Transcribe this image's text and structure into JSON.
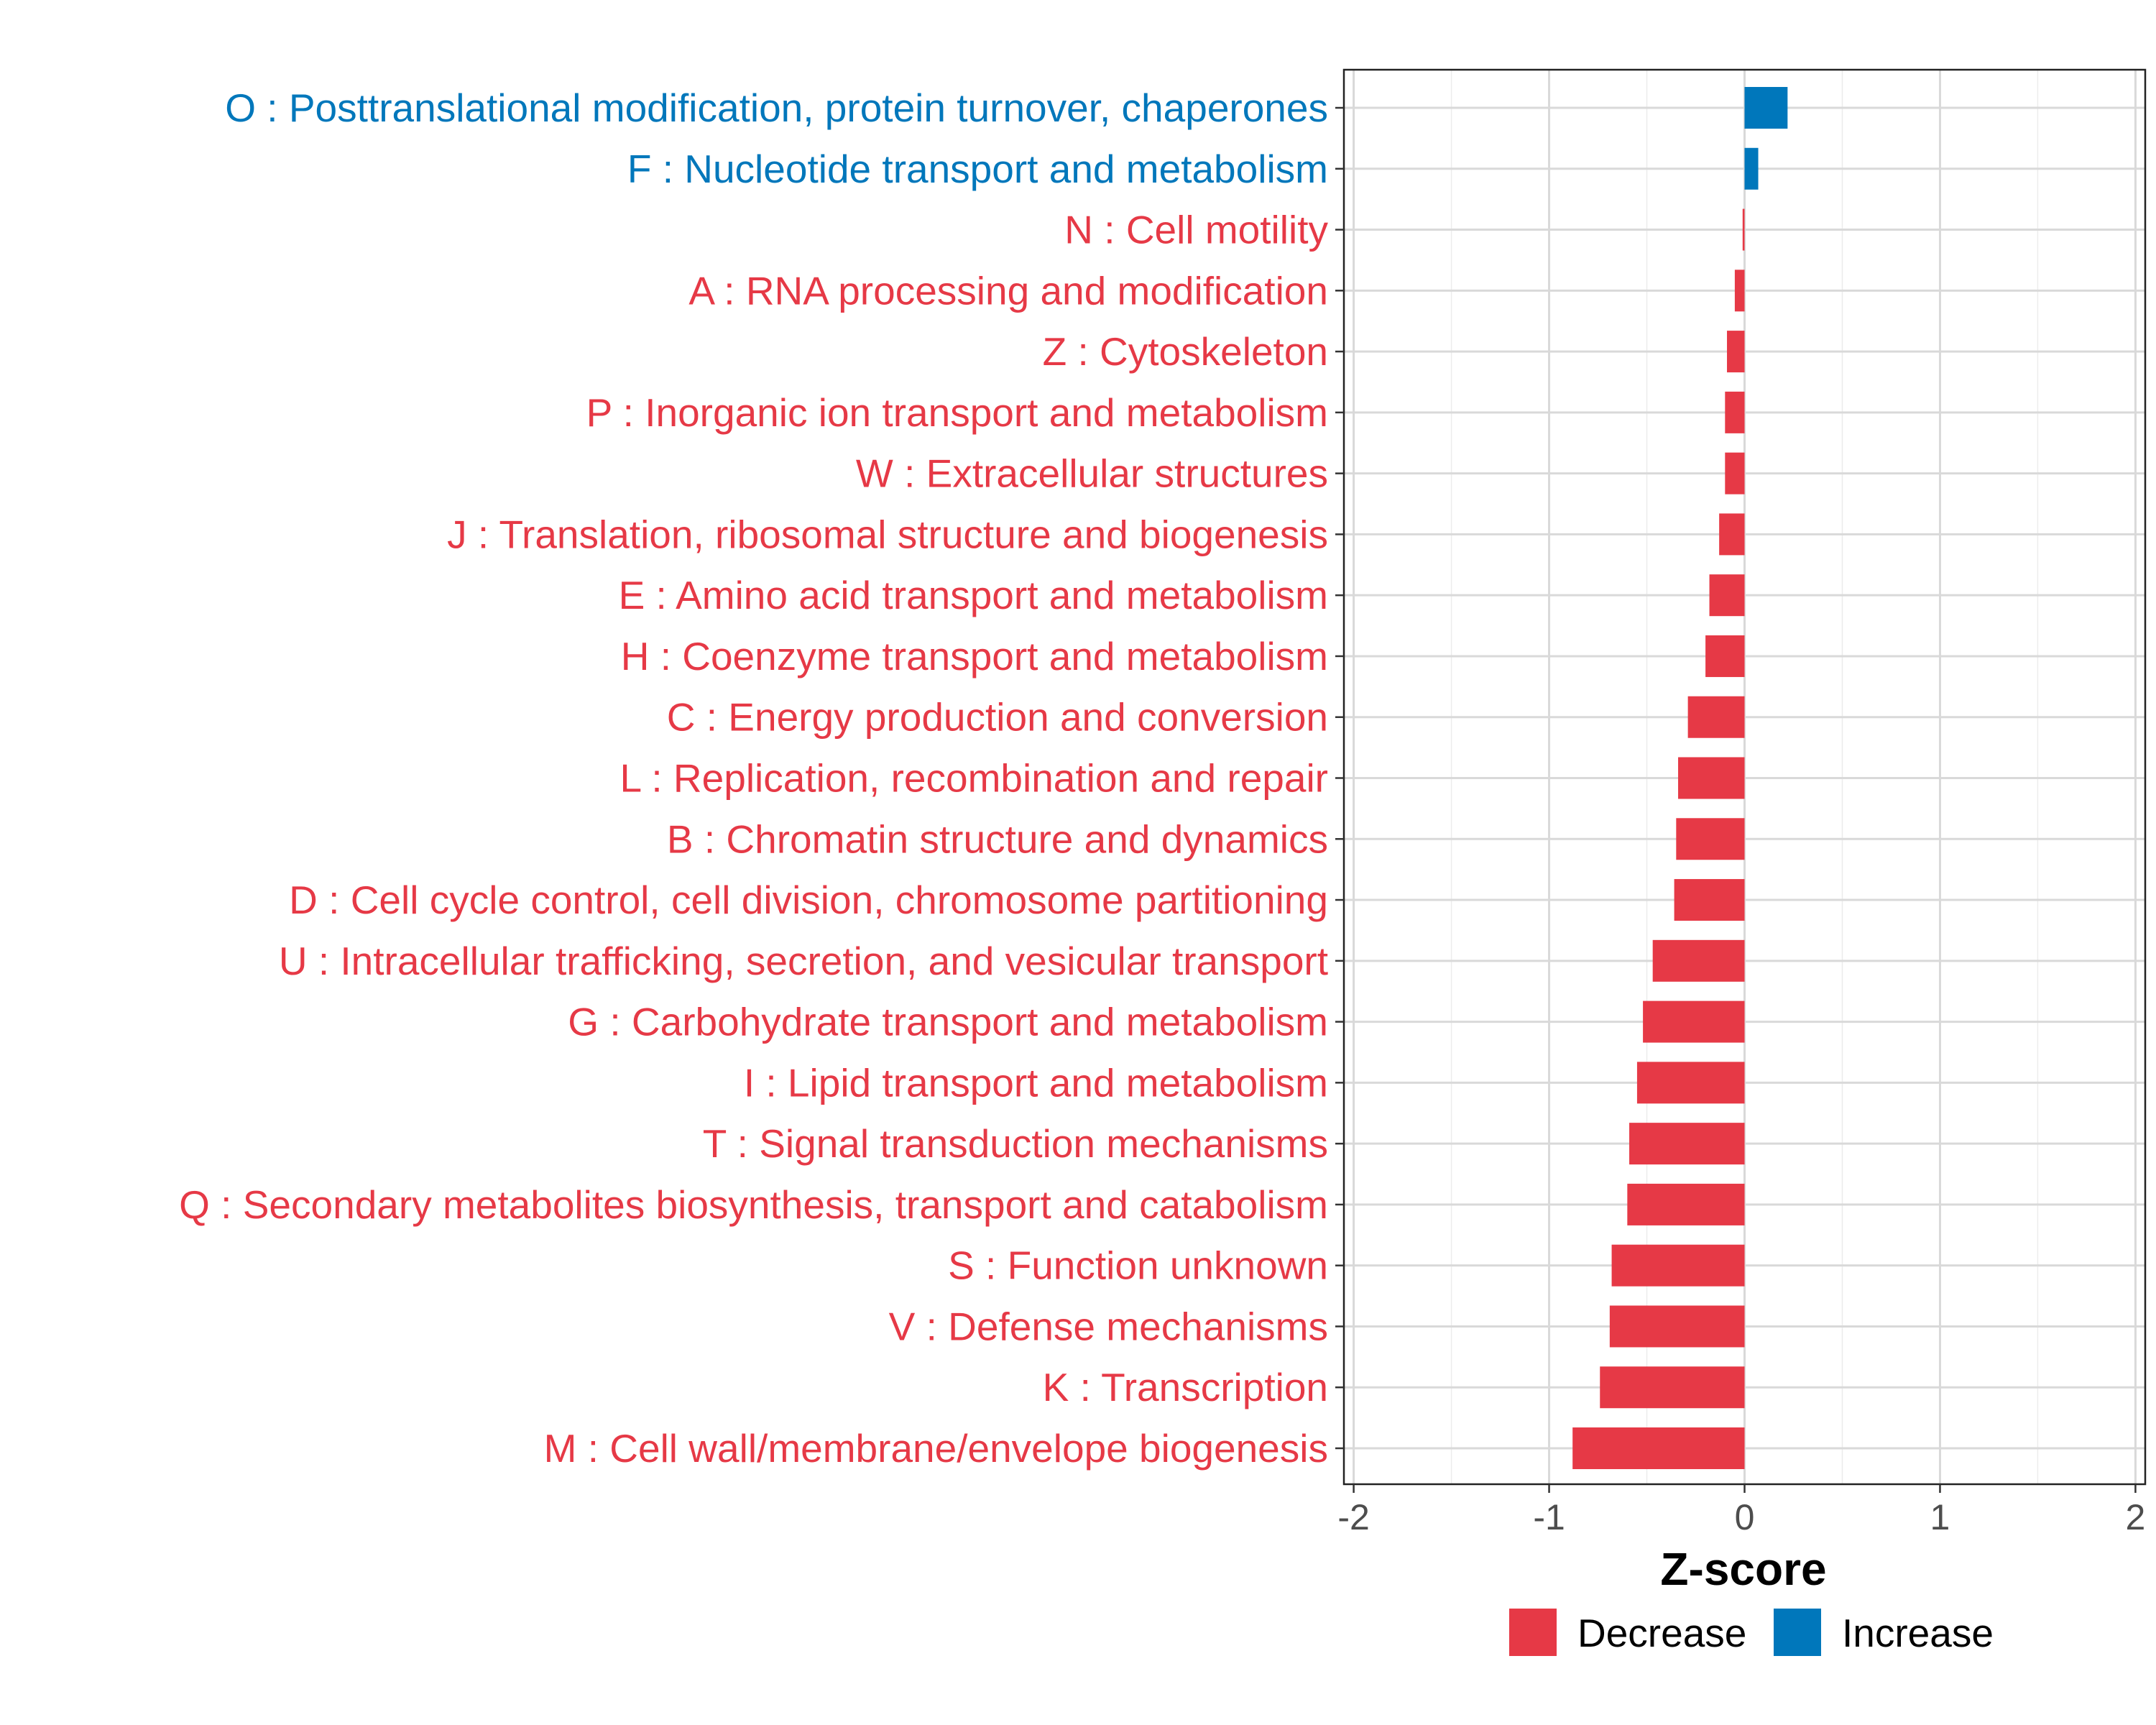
{
  "chart_data": {
    "type": "bar",
    "orientation": "horizontal",
    "xlabel": "Z-score",
    "ylabel": "",
    "xlim": [
      -2.05,
      2.05
    ],
    "x_ticks": [
      -2,
      -1,
      0,
      1,
      2
    ],
    "x_tick_labels": [
      "-2",
      "-1",
      "0",
      "1",
      "2"
    ],
    "grid": true,
    "legend_position": "bottom",
    "colors": {
      "Decrease": "#E63946",
      "Increase": "#0077BB"
    },
    "legend": [
      {
        "label": "Decrease",
        "color": "#E63946"
      },
      {
        "label": "Increase",
        "color": "#0077BB"
      }
    ],
    "categories": [
      "O : Posttranslational modification, protein turnover, chaperones",
      "F : Nucleotide transport and metabolism",
      "N : Cell motility",
      "A : RNA processing and modification",
      "Z : Cytoskeleton",
      "P : Inorganic ion transport and metabolism",
      "W : Extracellular structures",
      "J : Translation, ribosomal structure and biogenesis",
      "E : Amino acid transport and metabolism",
      "H : Coenzyme transport and metabolism",
      "C : Energy production and conversion",
      "L : Replication, recombination and repair",
      "B : Chromatin structure and dynamics",
      "D : Cell cycle control, cell division, chromosome partitioning",
      "U : Intracellular trafficking, secretion, and vesicular transport",
      "G : Carbohydrate transport and metabolism",
      "I : Lipid transport and metabolism",
      "T : Signal transduction mechanisms",
      "Q : Secondary metabolites biosynthesis, transport and catabolism",
      "S : Function unknown",
      "V : Defense mechanisms",
      "K : Transcription",
      "M : Cell wall/membrane/envelope biogenesis"
    ],
    "values": [
      0.22,
      0.07,
      -0.01,
      -0.05,
      -0.09,
      -0.1,
      -0.1,
      -0.13,
      -0.18,
      -0.2,
      -0.29,
      -0.34,
      -0.35,
      -0.36,
      -0.47,
      -0.52,
      -0.55,
      -0.59,
      -0.6,
      -0.68,
      -0.69,
      -0.74,
      -0.88
    ],
    "groups": [
      "Increase",
      "Increase",
      "Decrease",
      "Decrease",
      "Decrease",
      "Decrease",
      "Decrease",
      "Decrease",
      "Decrease",
      "Decrease",
      "Decrease",
      "Decrease",
      "Decrease",
      "Decrease",
      "Decrease",
      "Decrease",
      "Decrease",
      "Decrease",
      "Decrease",
      "Decrease",
      "Decrease",
      "Decrease",
      "Decrease"
    ]
  }
}
